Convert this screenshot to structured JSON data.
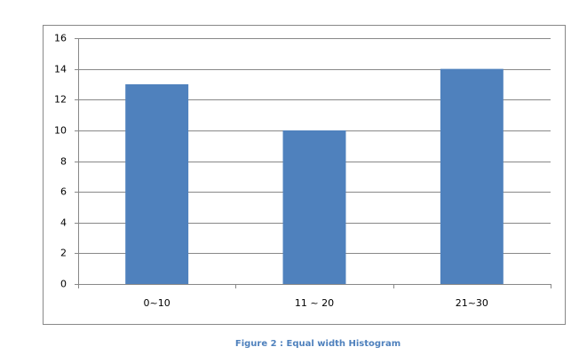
{
  "chart_data": {
    "type": "bar",
    "categories": [
      "0~10",
      "11 ~ 20",
      "21~30"
    ],
    "values": [
      13,
      10,
      14
    ],
    "color": "#4f81bd",
    "ylim": [
      0,
      16
    ],
    "yticks": [
      0,
      2,
      4,
      6,
      8,
      10,
      12,
      14,
      16
    ],
    "grid": true,
    "caption": "Figure 2 : Equal width  Histogram"
  }
}
